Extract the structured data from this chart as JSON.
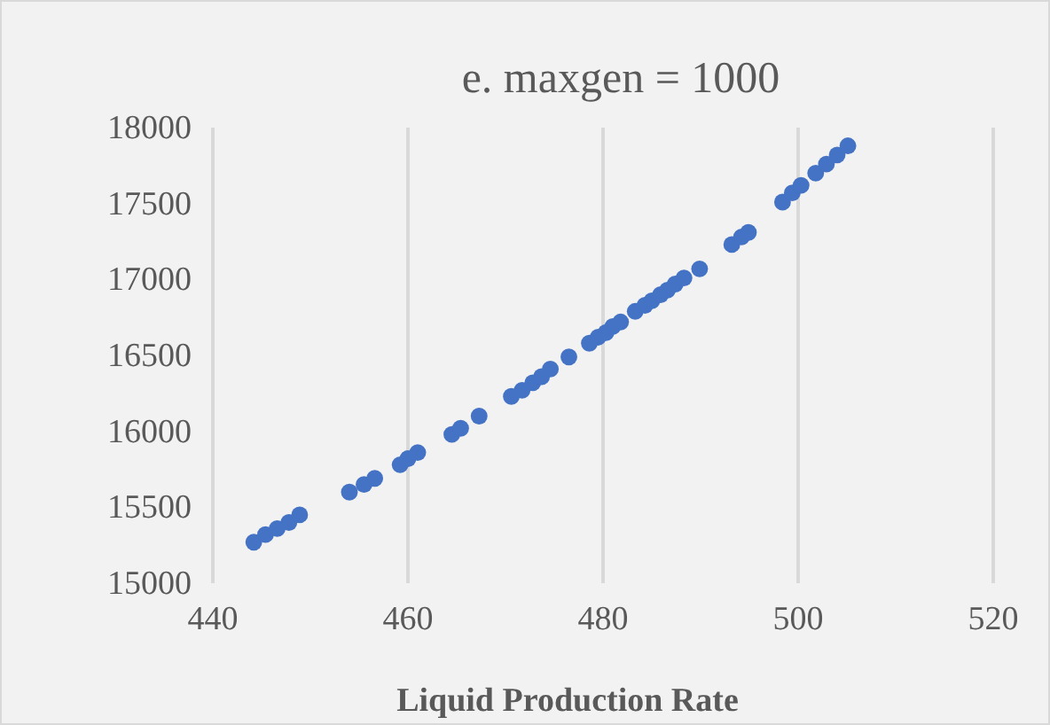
{
  "chart_data": {
    "type": "scatter",
    "title": "e. maxgen = 1000",
    "xlabel": "Liquid Production Rate",
    "x": [
      444.2,
      445.4,
      446.6,
      447.8,
      448.9,
      454.0,
      455.5,
      456.6,
      459.2,
      460.0,
      461.0,
      464.5,
      465.4,
      467.3,
      470.6,
      471.7,
      472.8,
      473.7,
      474.6,
      476.5,
      478.6,
      479.5,
      480.3,
      481.0,
      481.8,
      483.3,
      484.3,
      485.0,
      485.9,
      486.6,
      487.4,
      488.3,
      489.9,
      493.2,
      494.2,
      494.9,
      498.4,
      499.4,
      500.3,
      501.8,
      502.9,
      504.0,
      505.1
    ],
    "values": [
      15270,
      15320,
      15360,
      15400,
      15450,
      15600,
      15650,
      15690,
      15780,
      15820,
      15860,
      15980,
      16020,
      16100,
      16230,
      16270,
      16320,
      16360,
      16410,
      16490,
      16580,
      16620,
      16650,
      16690,
      16720,
      16790,
      16830,
      16860,
      16900,
      16930,
      16970,
      17010,
      17070,
      17230,
      17280,
      17310,
      17510,
      17570,
      17620,
      17700,
      17760,
      17820,
      17880
    ],
    "color": "#4472c4",
    "marker": "circle",
    "xlim": [
      440,
      520
    ],
    "xticks": [
      440,
      460,
      480,
      500,
      520
    ],
    "ylim": [
      15000,
      18000
    ],
    "yticks": [
      15000,
      15500,
      16000,
      16500,
      17000,
      17500,
      18000
    ],
    "grid": "x"
  }
}
